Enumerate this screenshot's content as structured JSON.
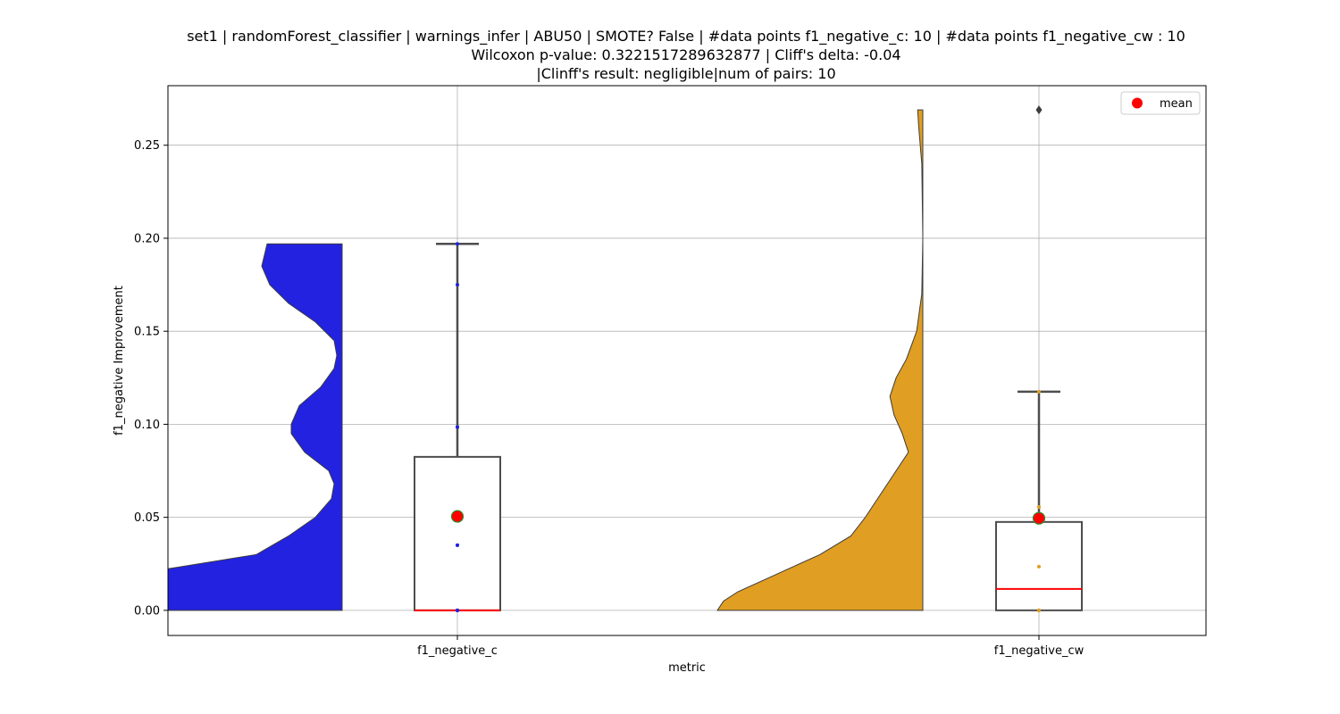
{
  "chart_data": {
    "type": "violin-box",
    "title_lines": [
      "set1 | randomForest_classifier | warnings_infer | ABU50 | SMOTE? False | #data points f1_negative_c: 10 | #data points f1_negative_cw : 10",
      "Wilcoxon p-value: 0.3221517289632877 | Cliff's delta: -0.04",
      "|Clinff's result: negligible|num of pairs: 10"
    ],
    "xlabel": "metric",
    "ylabel": "f1_negative Improvement",
    "categories": [
      "f1_negative_c",
      "f1_negative_cw"
    ],
    "ylim": [
      -0.0135,
      0.282
    ],
    "yticks": [
      0.0,
      0.05,
      0.1,
      0.15,
      0.2,
      0.25
    ],
    "ytick_labels": [
      "0.00",
      "0.05",
      "0.10",
      "0.15",
      "0.20",
      "0.25"
    ],
    "grid": true,
    "legend": {
      "position": "top-right",
      "entries": [
        "mean"
      ]
    },
    "colors": {
      "f1_negative_c": "#2222e0",
      "f1_negative_cw": "#e09e22",
      "mean_marker": "#ff0000",
      "median_line": "#ff0000",
      "box_edge": "#4d4d4d",
      "grid": "#b0b0b0"
    },
    "series": [
      {
        "category": "f1_negative_c",
        "box": {
          "q1": 0.0,
          "median": 0.0,
          "q3": 0.0825,
          "whisker_low": 0.0,
          "whisker_high": 0.197
        },
        "mean": 0.0505,
        "points": [
          0.0,
          0.0,
          0.0,
          0.035,
          0.035,
          0.0985,
          0.0985,
          0.175,
          0.197,
          0.0
        ],
        "violin_profile": [
          [
            0.0,
            1.0
          ],
          [
            0.01,
            1.0
          ],
          [
            0.02,
            0.75
          ],
          [
            0.03,
            0.32
          ],
          [
            0.04,
            0.2
          ],
          [
            0.05,
            0.1
          ],
          [
            0.06,
            0.04
          ],
          [
            0.068,
            0.03
          ],
          [
            0.075,
            0.05
          ],
          [
            0.085,
            0.14
          ],
          [
            0.095,
            0.19
          ],
          [
            0.1,
            0.19
          ],
          [
            0.11,
            0.16
          ],
          [
            0.12,
            0.08
          ],
          [
            0.13,
            0.03
          ],
          [
            0.137,
            0.02
          ],
          [
            0.145,
            0.03
          ],
          [
            0.155,
            0.1
          ],
          [
            0.165,
            0.2
          ],
          [
            0.175,
            0.27
          ],
          [
            0.185,
            0.3
          ],
          [
            0.197,
            0.28
          ]
        ]
      },
      {
        "category": "f1_negative_cw",
        "box": {
          "q1": 0.0,
          "median": 0.0115,
          "q3": 0.0475,
          "whisker_low": 0.0,
          "whisker_high": 0.1175
        },
        "mean": 0.0495,
        "outliers": [
          0.269
        ],
        "points": [
          0.0,
          0.0,
          0.0,
          0.0,
          0.0,
          0.0235,
          0.0555,
          0.0555,
          0.1175,
          0.269
        ],
        "violin_profile": [
          [
            0.0,
            1.0
          ],
          [
            0.005,
            0.97
          ],
          [
            0.01,
            0.9
          ],
          [
            0.02,
            0.7
          ],
          [
            0.03,
            0.5
          ],
          [
            0.04,
            0.35
          ],
          [
            0.05,
            0.28
          ],
          [
            0.06,
            0.22
          ],
          [
            0.075,
            0.13
          ],
          [
            0.085,
            0.07
          ],
          [
            0.095,
            0.1
          ],
          [
            0.105,
            0.14
          ],
          [
            0.115,
            0.16
          ],
          [
            0.125,
            0.13
          ],
          [
            0.135,
            0.08
          ],
          [
            0.15,
            0.03
          ],
          [
            0.17,
            0.005
          ],
          [
            0.2,
            0.0
          ],
          [
            0.24,
            0.005
          ],
          [
            0.26,
            0.02
          ],
          [
            0.269,
            0.025
          ]
        ]
      }
    ]
  }
}
